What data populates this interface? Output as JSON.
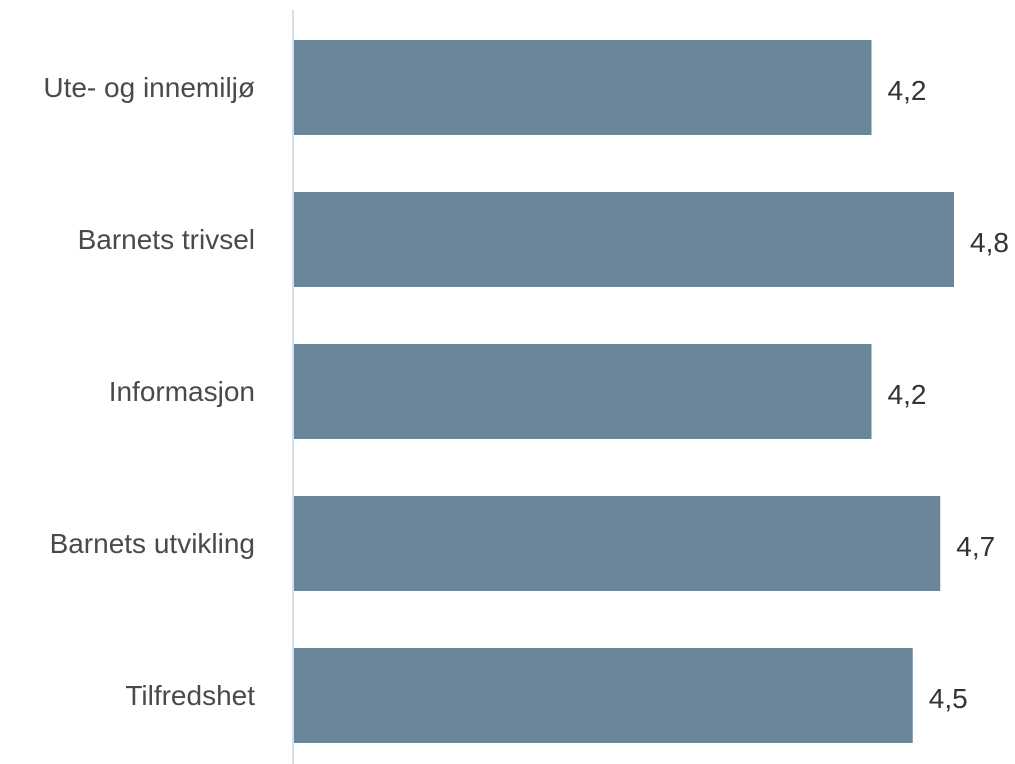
{
  "chart_data": {
    "type": "bar",
    "orientation": "horizontal",
    "categories": [
      "Ute- og innemiljø",
      "Barnets trivsel",
      "Informasjon",
      "Barnets utvikling",
      "Tilfredshet"
    ],
    "values": [
      4.2,
      4.8,
      4.2,
      4.7,
      4.5
    ],
    "value_labels": [
      "4,2",
      "4,8",
      "4,2",
      "4,7",
      "4,5"
    ],
    "xlim": [
      0,
      5
    ],
    "grid": false,
    "colors": {
      "bar": "#6b8599",
      "axis": "#c9d3e6"
    }
  }
}
